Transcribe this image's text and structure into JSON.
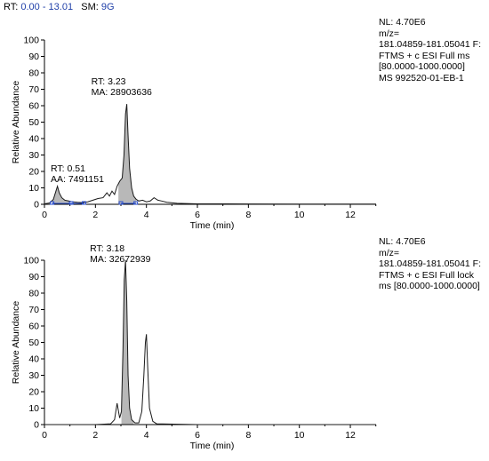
{
  "header": {
    "rt_label": "RT:",
    "rt_value": "0.00 - 13.01",
    "sm_label": "SM:",
    "sm_value": "9G"
  },
  "colors": {
    "trace": "#1a1a1a",
    "fill": "#b8b8b8",
    "baseline_marker": "#2a4fcf",
    "header_value": "#1f3fa8"
  },
  "panels": [
    {
      "info": [
        "NL: 4.70E6",
        "m/z=",
        "181.04859-181.05041 F:",
        "FTMS + c ESI Full ms",
        "[80.0000-1000.0000]",
        "MS 992520-01-EB-1"
      ],
      "annotations": [
        {
          "line1": "RT: 3.23",
          "line2": "MA: 28903636",
          "rt": 3.23
        },
        {
          "line1": "RT: 0.51",
          "line2": "AA: 7491151",
          "rt": 0.51
        }
      ]
    },
    {
      "info": [
        "NL: 4.70E6",
        "m/z=",
        "181.04859-181.05041 F:",
        "FTMS + c ESI Full lock",
        "ms [80.0000-1000.0000]"
      ],
      "annotations": [
        {
          "line1": "RT: 3.18",
          "line2": "MA: 32672939",
          "rt": 3.18
        }
      ]
    }
  ],
  "chart_data": [
    {
      "type": "line",
      "xlabel": "Time (min)",
      "ylabel": "Relative Abundance",
      "xlim": [
        0,
        13.01
      ],
      "ylim": [
        0,
        100
      ],
      "xticks": [
        0,
        2,
        4,
        6,
        8,
        10,
        12
      ],
      "yticks": [
        0,
        10,
        20,
        30,
        40,
        50,
        60,
        70,
        80,
        90,
        100
      ],
      "x": [
        0.0,
        0.2,
        0.35,
        0.45,
        0.51,
        0.58,
        0.68,
        0.8,
        0.95,
        1.1,
        1.3,
        1.5,
        1.7,
        1.9,
        2.1,
        2.3,
        2.45,
        2.55,
        2.65,
        2.75,
        2.85,
        2.95,
        3.05,
        3.12,
        3.18,
        3.23,
        3.28,
        3.34,
        3.42,
        3.5,
        3.6,
        3.7,
        3.85,
        4.0,
        4.15,
        4.3,
        4.45,
        4.6,
        4.8,
        5.2,
        6.0,
        8.0,
        10.0,
        13.01
      ],
      "y": [
        0.3,
        0.8,
        3,
        8,
        11,
        7,
        4,
        2.5,
        2,
        1.5,
        1.2,
        1,
        1.5,
        2.5,
        3.5,
        4,
        7,
        5,
        8,
        6,
        11,
        14,
        16,
        30,
        55,
        61,
        42,
        22,
        10,
        5,
        3,
        2,
        2.5,
        1.5,
        2,
        4,
        2.5,
        2,
        1.2,
        0.6,
        0.3,
        0.2,
        0.1,
        0.1
      ],
      "shaded_peaks": [
        [
          0.3,
          1.0
        ],
        [
          2.9,
          3.6
        ]
      ],
      "baseline_markers": [
        0.3,
        1.05,
        1.55,
        3.0,
        3.58
      ]
    },
    {
      "type": "line",
      "xlabel": "Time (min)",
      "ylabel": "Relative Abundance",
      "xlim": [
        0,
        13.01
      ],
      "ylim": [
        0,
        100
      ],
      "xticks": [
        0,
        2,
        4,
        6,
        8,
        10,
        12
      ],
      "yticks": [
        0,
        10,
        20,
        30,
        40,
        50,
        60,
        70,
        80,
        90,
        100
      ],
      "x": [
        0.0,
        1.0,
        2.0,
        2.6,
        2.75,
        2.85,
        2.95,
        3.02,
        3.08,
        3.13,
        3.18,
        3.23,
        3.28,
        3.34,
        3.42,
        3.55,
        3.7,
        3.82,
        3.9,
        3.96,
        4.0,
        4.05,
        4.12,
        4.25,
        4.4,
        6.0,
        8.0,
        13.01
      ],
      "y": [
        0,
        0,
        0,
        0.5,
        3,
        13,
        4,
        8,
        45,
        88,
        100,
        75,
        30,
        10,
        3,
        1,
        1,
        8,
        30,
        50,
        55,
        35,
        10,
        2,
        0.5,
        0,
        0,
        0
      ],
      "shaded_peaks": [
        [
          3.02,
          3.5
        ]
      ],
      "baseline_markers": []
    }
  ]
}
